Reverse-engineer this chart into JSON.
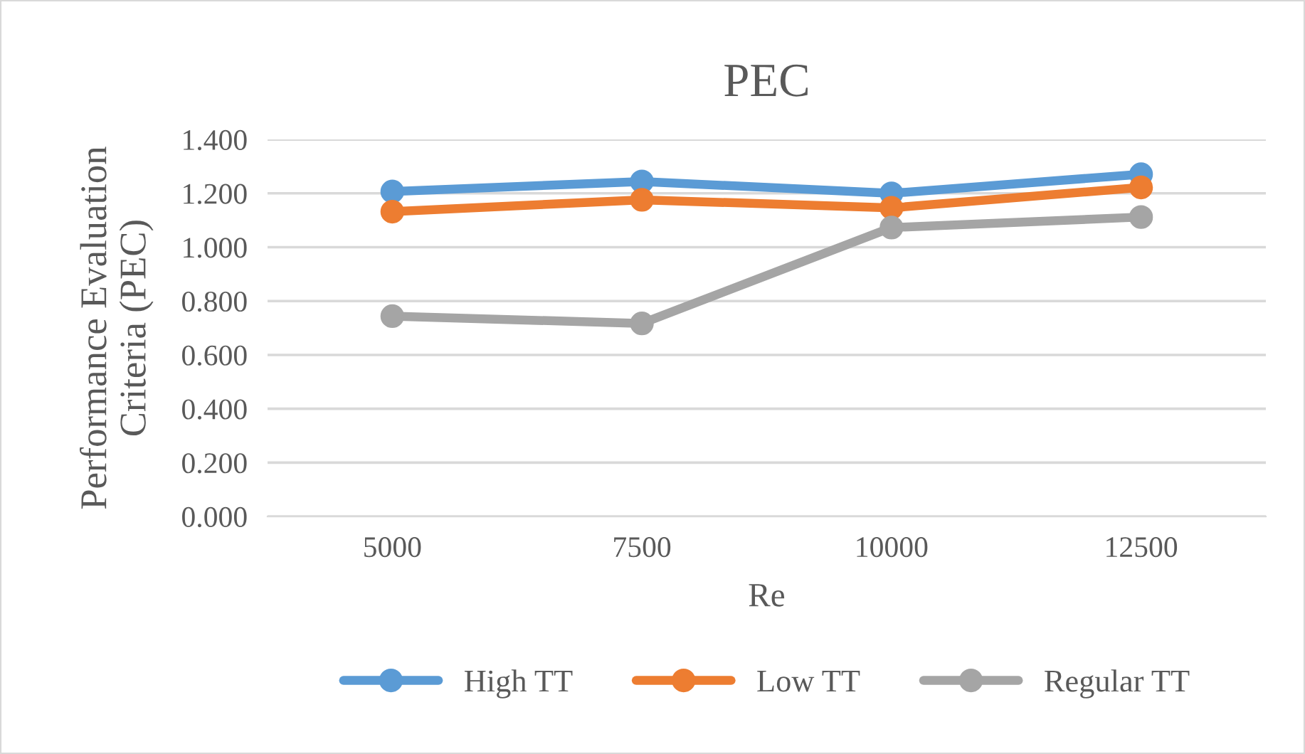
{
  "chart_data": {
    "type": "line",
    "title": "PEC",
    "xlabel": "Re",
    "ylabel": "Performance Evaluation Criteria (PEC)",
    "categories": [
      "5000",
      "7500",
      "10000",
      "12500"
    ],
    "series": [
      {
        "name": "High TT",
        "color": "#5b9bd5",
        "values": [
          1.207,
          1.244,
          1.2,
          1.271
        ]
      },
      {
        "name": "Low TT",
        "color": "#ed7d31",
        "values": [
          1.132,
          1.176,
          1.146,
          1.222
        ]
      },
      {
        "name": "Regular TT",
        "color": "#a5a5a5",
        "values": [
          0.744,
          0.717,
          1.073,
          1.112
        ]
      }
    ],
    "ylim": [
      0,
      1.4
    ],
    "yticks": [
      {
        "value": 0,
        "label": "0.000"
      },
      {
        "value": 0.2,
        "label": "0.200"
      },
      {
        "value": 0.4,
        "label": "0.400"
      },
      {
        "value": 0.6,
        "label": "0.600"
      },
      {
        "value": 0.8,
        "label": "0.800"
      },
      {
        "value": 1.0,
        "label": "1.000"
      },
      {
        "value": 1.2,
        "label": "1.200"
      },
      {
        "value": 1.4,
        "label": "1.400"
      }
    ],
    "grid": "y",
    "legend": "bottom",
    "marker": "circle",
    "line_style": "solid"
  }
}
